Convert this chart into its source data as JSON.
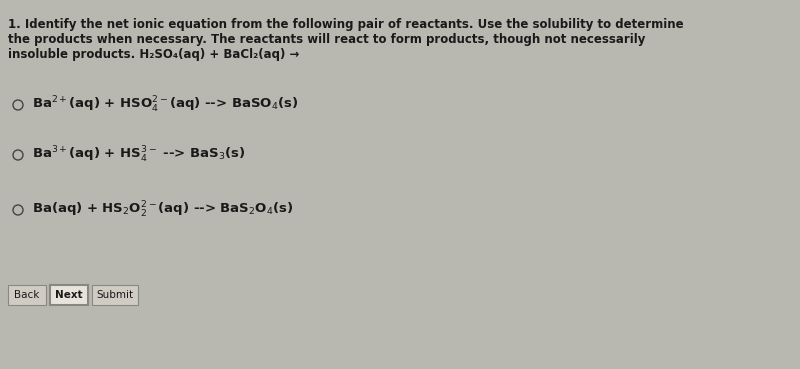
{
  "background_color": "#b8b8b0",
  "panel_color": "#deded8",
  "title_lines": [
    "1. Identify the net ionic equation from the following pair of reactants. Use the solubility to determine",
    "the products when necessary. The reactants will react to form products, though not necessarily",
    "insoluble products. H₂SO₄(aq) + BaCl₂(aq) →"
  ],
  "option1_parts": [
    {
      "text": "Ba",
      "style": "normal"
    },
    {
      "text": "2+",
      "style": "super"
    },
    {
      "text": "(aq) + HSO",
      "style": "normal"
    },
    {
      "text": "4",
      "style": "sub"
    },
    {
      "text": "2−",
      "style": "super_after_sub"
    },
    {
      "text": "(aq) --> BaSO",
      "style": "normal"
    },
    {
      "text": "4",
      "style": "sub"
    },
    {
      "text": "(s)",
      "style": "normal"
    }
  ],
  "option2_parts": [
    {
      "text": "Ba",
      "style": "normal"
    },
    {
      "text": "3+",
      "style": "super"
    },
    {
      "text": "(aq) + HS",
      "style": "normal"
    },
    {
      "text": "4",
      "style": "sub"
    },
    {
      "text": "3−",
      "style": "super_after_sub"
    },
    {
      "text": " --> BaS",
      "style": "normal"
    },
    {
      "text": "3",
      "style": "sub"
    },
    {
      "text": "(s)",
      "style": "normal"
    }
  ],
  "option3_parts": [
    {
      "text": "Ba(aq) + HS",
      "style": "normal"
    },
    {
      "text": "2",
      "style": "sub"
    },
    {
      "text": "O",
      "style": "normal"
    },
    {
      "text": "2",
      "style": "sub"
    },
    {
      "text": "2−",
      "style": "super_after_sub"
    },
    {
      "text": "(aq) --> BaS",
      "style": "normal"
    },
    {
      "text": "2",
      "style": "sub"
    },
    {
      "text": "O",
      "style": "normal"
    },
    {
      "text": "4",
      "style": "sub"
    },
    {
      "text": "(s)",
      "style": "normal"
    }
  ],
  "font_size_title": 8.5,
  "font_size_options": 9.5,
  "text_color": "#1a1a1a",
  "button_color": "#d0ccc4",
  "button_border_color": "#888880",
  "button_next_color": "#e8e4dc"
}
